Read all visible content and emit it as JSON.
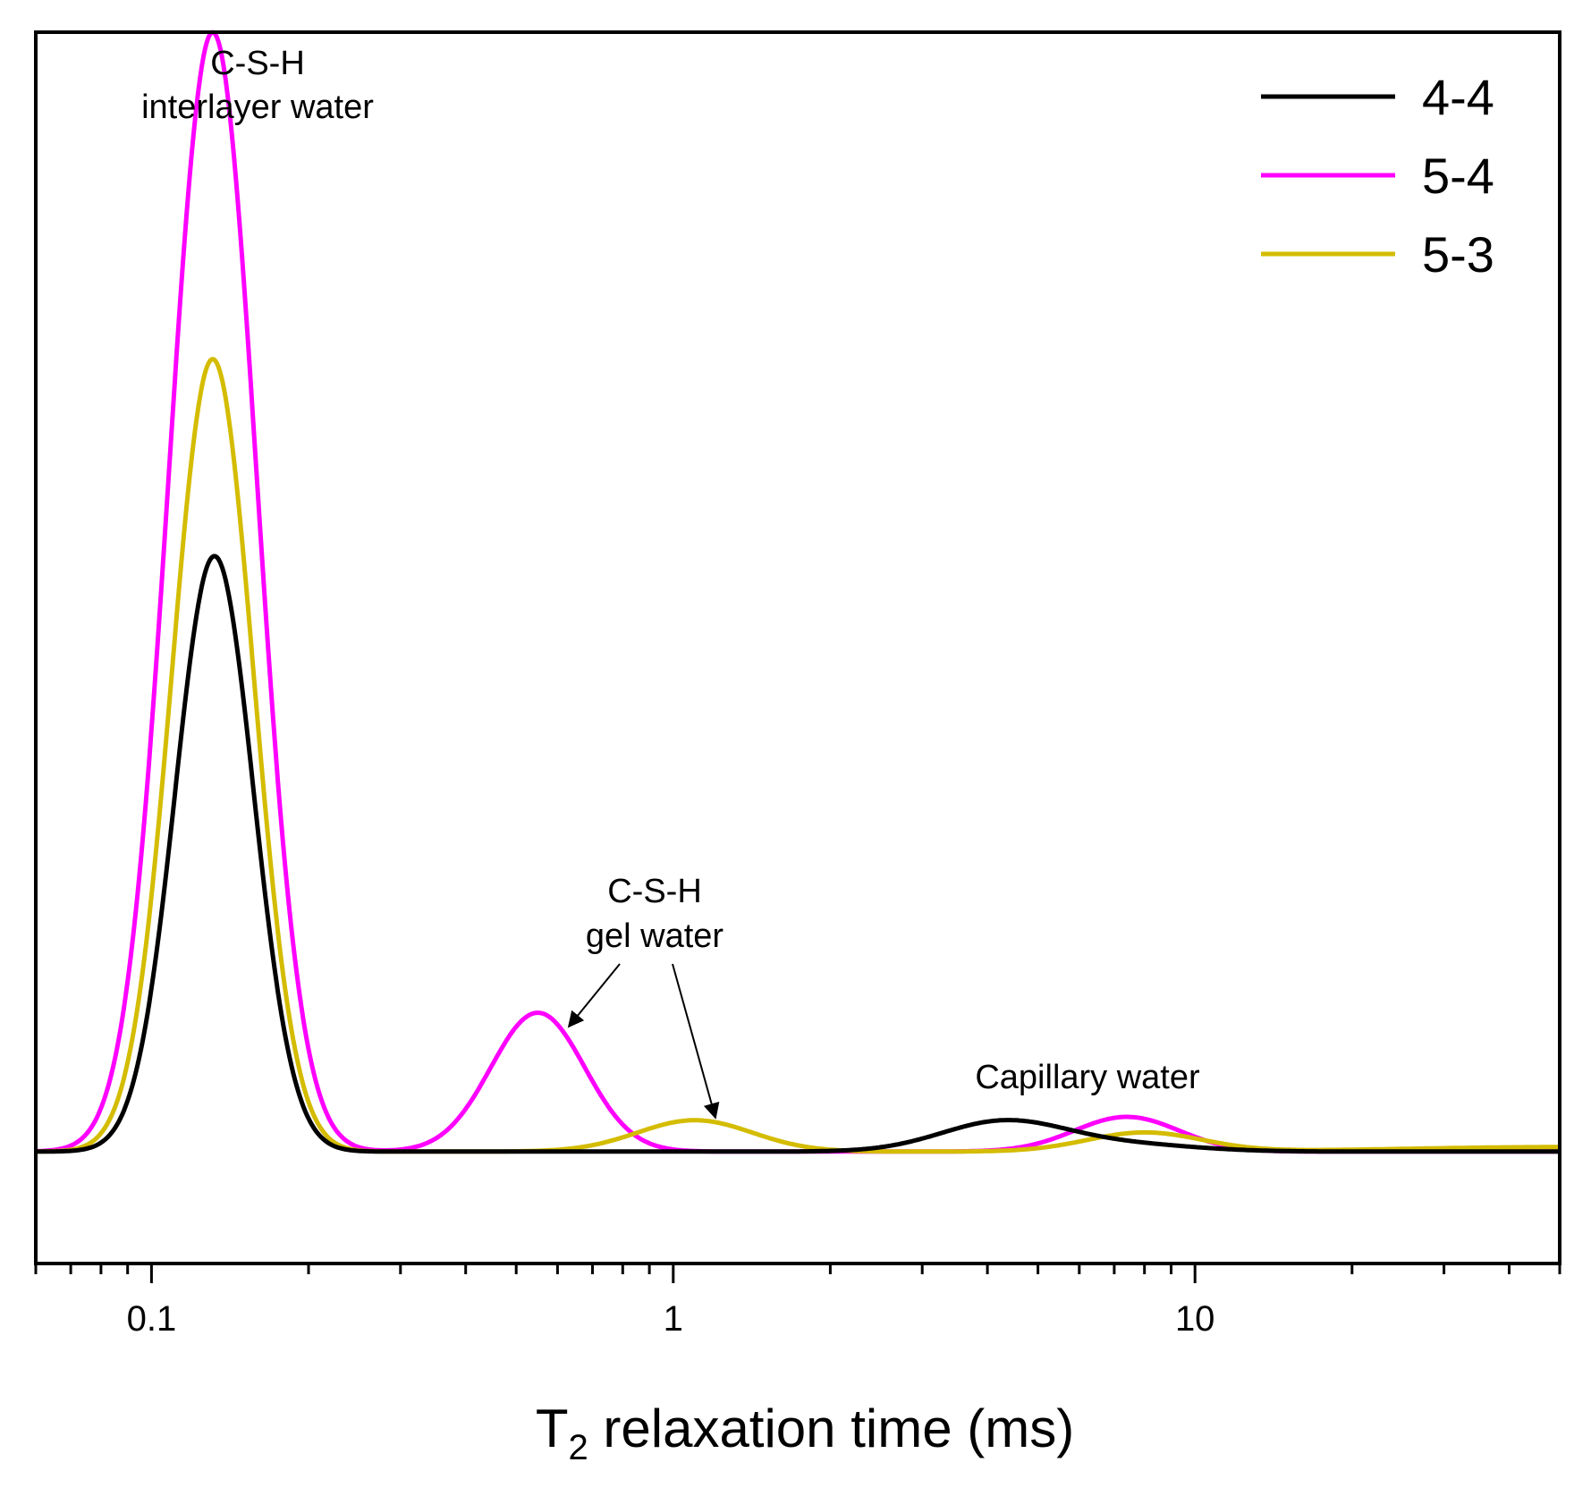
{
  "chart_data": {
    "type": "line",
    "xlabel_main": "T",
    "xlabel_sub": "2",
    "xlabel_rest": " relaxation time (ms)",
    "ylabel": "",
    "xscale": "log",
    "xlim": [
      0.06,
      50
    ],
    "ylim": [
      -0.1,
      1.0
    ],
    "yticks_visible": false,
    "grid": false,
    "legend_position": "top-right",
    "x_ticks": [
      {
        "value": 0.1,
        "label": "0.1"
      },
      {
        "value": 1,
        "label": "1"
      },
      {
        "value": 10,
        "label": "10"
      }
    ],
    "series": [
      {
        "name": "4-4",
        "color": "#000000",
        "peaks": [
          {
            "center": 0.132,
            "height": 0.532,
            "width": 0.075
          },
          {
            "center": 4.3,
            "height": 0.027,
            "width": 0.12
          },
          {
            "center": 7.5,
            "height": 0.006,
            "width": 0.13
          }
        ]
      },
      {
        "name": "5-4",
        "color": "#ff00ff",
        "peaks": [
          {
            "center": 0.131,
            "height": 1.0,
            "width": 0.084
          },
          {
            "center": 0.55,
            "height": 0.124,
            "width": 0.09
          },
          {
            "center": 7.4,
            "height": 0.031,
            "width": 0.1
          }
        ]
      },
      {
        "name": "5-3",
        "color": "#d4bc00",
        "peaks": [
          {
            "center": 0.131,
            "height": 0.708,
            "width": 0.078
          },
          {
            "center": 1.1,
            "height": 0.028,
            "width": 0.11
          },
          {
            "center": 8.0,
            "height": 0.017,
            "width": 0.11
          },
          {
            "center": 50,
            "height": 0.004,
            "width": 0.3
          }
        ]
      }
    ],
    "annotations": [
      {
        "lines": [
          "C-S-H",
          "interlayer water"
        ]
      },
      {
        "lines": [
          "C-S-H",
          "gel water"
        ]
      },
      {
        "lines": [
          "Capillary water"
        ]
      }
    ]
  }
}
